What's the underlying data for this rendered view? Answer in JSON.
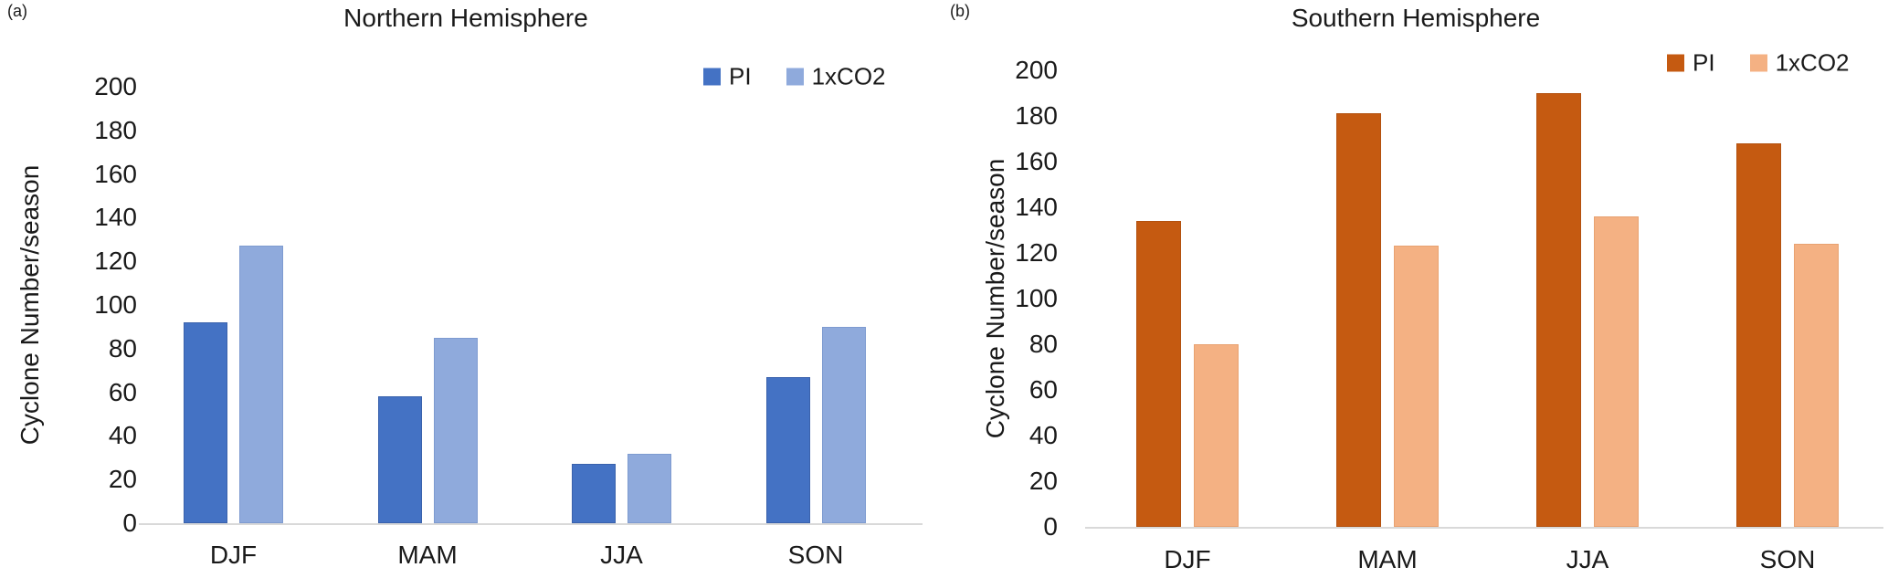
{
  "figure": {
    "panels": [
      {
        "corner_label": "(a)"
      },
      {
        "corner_label": "(b)"
      }
    ]
  },
  "chart_data": [
    {
      "type": "bar",
      "panel": "(a)",
      "title": "Northern Hemisphere",
      "ylabel": "Cyclone Number/season",
      "xlabel": "",
      "categories": [
        "DJF",
        "MAM",
        "JJA",
        "SON"
      ],
      "series": [
        {
          "name": "PI",
          "color": "#4472C4",
          "border_color": "#3A62AC",
          "values": [
            92,
            58,
            27,
            67
          ]
        },
        {
          "name": "1xCO2",
          "color": "#8FAADC",
          "border_color": "#7E9BD0",
          "values": [
            127,
            85,
            32,
            90
          ]
        }
      ],
      "ylim": [
        0,
        200
      ],
      "ytick_step": 20,
      "grid": false,
      "legend_position": "top-right",
      "axis_line_color": "#D9D9D9"
    },
    {
      "type": "bar",
      "panel": "(b)",
      "title": "Southern Hemisphere",
      "ylabel": "Cyclone Number/season",
      "xlabel": "",
      "categories": [
        "DJF",
        "MAM",
        "JJA",
        "SON"
      ],
      "series": [
        {
          "name": "PI",
          "color": "#C55A11",
          "border_color": "#B3510F",
          "values": [
            134,
            181,
            190,
            168
          ]
        },
        {
          "name": "1xCO2",
          "color": "#F4B183",
          "border_color": "#E8A271",
          "values": [
            80,
            123,
            136,
            124
          ]
        }
      ],
      "ylim": [
        0,
        200
      ],
      "ytick_step": 20,
      "grid": false,
      "legend_position": "top-right",
      "axis_line_color": "#D9D9D9"
    }
  ]
}
